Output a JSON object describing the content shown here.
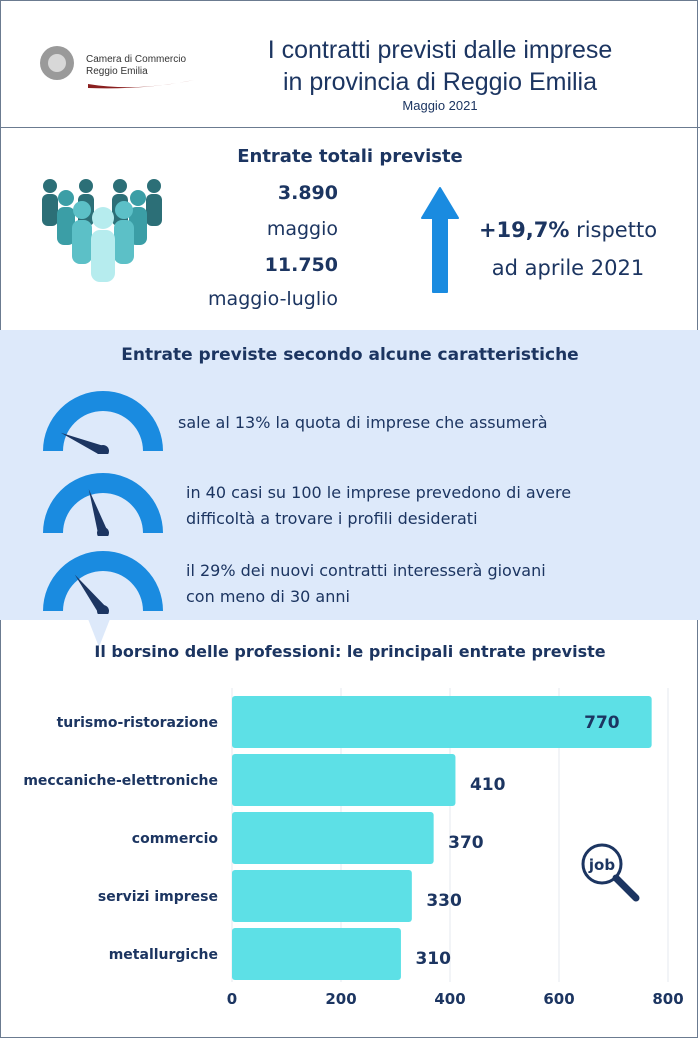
{
  "header": {
    "logo_line1": "Camera di Commercio",
    "logo_line2": "Reggio Emilia",
    "title_line1": "I contratti previsti dalle imprese",
    "title_line2": "in provincia di Reggio Emilia",
    "subtitle": "Maggio 2021"
  },
  "totals": {
    "title": "Entrate totali previste",
    "value_month": "3.890",
    "label_month": "maggio",
    "value_period": "11.750",
    "label_period": "maggio-luglio",
    "change_line1_bold": "+19,7%",
    "change_line1_rest": " rispetto",
    "change_line2": "ad aprile 2021"
  },
  "characteristics": {
    "title": "Entrate previste secondo alcune caratteristiche",
    "items": [
      {
        "text": "sale al 13% la quota di imprese che assumerà",
        "level": 0.13
      },
      {
        "text_line1": "in 40 casi su 100 le imprese prevedono di avere",
        "text_line2": "difficoltà a trovare i profili desiderati",
        "level": 0.4
      },
      {
        "text_line1": "il 29% dei nuovi contratti interesserà giovani",
        "text_line2": "con meno di 30 anni",
        "level": 0.29
      }
    ]
  },
  "chart_data": {
    "type": "bar",
    "orientation": "horizontal",
    "title": "Il borsino delle professioni: le principali entrate previste",
    "categories": [
      "turismo-ristorazione",
      "meccaniche-elettroniche",
      "commercio",
      "servizi imprese",
      "metallurgiche"
    ],
    "values": [
      770,
      410,
      370,
      330,
      310
    ],
    "value_labels": [
      "770",
      "410",
      "370",
      "330",
      "310"
    ],
    "xlim": [
      0,
      800
    ],
    "xticks": [
      "0",
      "200",
      "400",
      "600",
      "800"
    ],
    "grid": true,
    "bar_color": "#5de0e6"
  },
  "icons": {
    "people": "people-group-icon",
    "arrow": "arrow-up-icon",
    "gauge": "gauge-icon",
    "job": "job-search-icon"
  },
  "colors": {
    "navy": "#1c3561",
    "accent_blue": "#1a8be0",
    "cyan": "#5de0e6",
    "band": "#dde9fa"
  }
}
